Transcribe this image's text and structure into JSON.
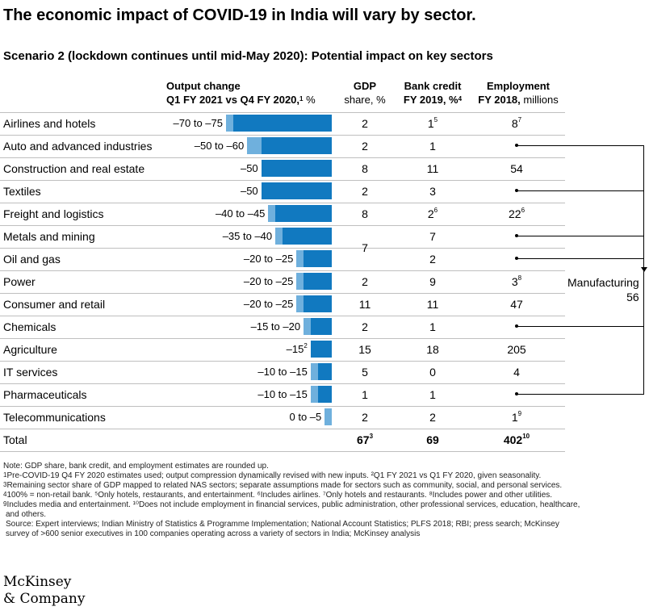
{
  "title": "The economic impact of COVID-19 in India will vary by sector.",
  "subtitle": "Scenario 2 (lockdown continues until mid-May 2020): Potential impact on key sectors",
  "headers": {
    "output_line1": "Output change",
    "output_line2": "Q1 FY 2021 vs Q4 FY 2020,",
    "output_sup": "1",
    "output_unit": " %",
    "gdp_line1": "GDP",
    "gdp_line2": "share, %",
    "credit_line1": "Bank credit",
    "credit_line2": "FY 2019, %",
    "credit_sup": "4",
    "emp_line1": "Employment",
    "emp_line2": "FY 2018,",
    "emp_unit": " millions"
  },
  "colors": {
    "bar_min": "#1179c0",
    "bar_range": "#6fb0dd"
  },
  "chart_data": {
    "type": "table",
    "rows": [
      {
        "sector": "Airlines and hotels",
        "output_label": "–70 to –75",
        "output_min": -70,
        "output_max": -75,
        "gdp": "2",
        "gdp_sup": "",
        "credit": "1",
        "credit_sup": "5",
        "employment": "8",
        "employment_sup": "7",
        "mfg": false
      },
      {
        "sector": "Auto and advanced industries",
        "output_label": "–50 to –60",
        "output_min": -50,
        "output_max": -60,
        "gdp": "2",
        "gdp_sup": "",
        "credit": "1",
        "credit_sup": "",
        "employment": "",
        "employment_sup": "",
        "mfg": true
      },
      {
        "sector": "Construction and real estate",
        "output_label": "–50",
        "output_min": -50,
        "output_max": -50,
        "gdp": "8",
        "gdp_sup": "",
        "credit": "11",
        "credit_sup": "",
        "employment": "54",
        "employment_sup": "",
        "mfg": false
      },
      {
        "sector": "Textiles",
        "output_label": "–50",
        "output_min": -50,
        "output_max": -50,
        "gdp": "2",
        "gdp_sup": "",
        "credit": "3",
        "credit_sup": "",
        "employment": "",
        "employment_sup": "",
        "mfg": true
      },
      {
        "sector": "Freight and logistics",
        "output_label": "–40 to –45",
        "output_min": -40,
        "output_max": -45,
        "gdp": "8",
        "gdp_sup": "",
        "credit": "2",
        "credit_sup": "6",
        "employment": "22",
        "employment_sup": "6",
        "mfg": false
      },
      {
        "sector": "Metals and mining",
        "output_label": "–35 to –40",
        "output_min": -35,
        "output_max": -40,
        "gdp": "",
        "gdp_sup": "",
        "credit": "7",
        "credit_sup": "",
        "employment": "",
        "employment_sup": "",
        "mfg": true
      },
      {
        "sector": "Oil and gas",
        "output_label": "–20 to –25",
        "output_min": -20,
        "output_max": -25,
        "gdp": "",
        "gdp_sup": "",
        "credit": "2",
        "credit_sup": "",
        "employment": "",
        "employment_sup": "",
        "mfg": true
      },
      {
        "sector": "Power",
        "output_label": "–20 to –25",
        "output_min": -20,
        "output_max": -25,
        "gdp": "2",
        "gdp_sup": "",
        "credit": "9",
        "credit_sup": "",
        "employment": "3",
        "employment_sup": "8",
        "mfg": false
      },
      {
        "sector": "Consumer and retail",
        "output_label": "–20 to –25",
        "output_min": -20,
        "output_max": -25,
        "gdp": "11",
        "gdp_sup": "",
        "credit": "11",
        "credit_sup": "",
        "employment": "47",
        "employment_sup": "",
        "mfg": false
      },
      {
        "sector": "Chemicals",
        "output_label": "–15 to –20",
        "output_min": -15,
        "output_max": -20,
        "gdp": "2",
        "gdp_sup": "",
        "credit": "1",
        "credit_sup": "",
        "employment": "",
        "employment_sup": "",
        "mfg": true
      },
      {
        "sector": "Agriculture",
        "output_label": "–15",
        "output_sup": "2",
        "output_min": -15,
        "output_max": -15,
        "gdp": "15",
        "gdp_sup": "",
        "credit": "18",
        "credit_sup": "",
        "employment": "205",
        "employment_sup": "",
        "mfg": false
      },
      {
        "sector": "IT services",
        "output_label": "–10 to –15",
        "output_min": -10,
        "output_max": -15,
        "gdp": "5",
        "gdp_sup": "",
        "credit": "0",
        "credit_sup": "",
        "employment": "4",
        "employment_sup": "",
        "mfg": false
      },
      {
        "sector": "Pharmaceuticals",
        "output_label": "–10 to –15",
        "output_min": -10,
        "output_max": -15,
        "gdp": "1",
        "gdp_sup": "",
        "credit": "1",
        "credit_sup": "",
        "employment": "",
        "employment_sup": "",
        "mfg": true
      },
      {
        "sector": "Telecommunications",
        "output_label": "0 to –5",
        "output_min": 0,
        "output_max": -5,
        "gdp": "2",
        "gdp_sup": "",
        "credit": "2",
        "credit_sup": "",
        "employment": "1",
        "employment_sup": "9",
        "mfg": false
      }
    ],
    "merged_gdp": {
      "value": "7",
      "rows": [
        "Metals and mining",
        "Oil and gas"
      ]
    },
    "manufacturing": {
      "label": "Manufacturing",
      "value": "56"
    },
    "total": {
      "label": "Total",
      "gdp": "67",
      "gdp_sup": "3",
      "credit": "69",
      "employment": "402",
      "employment_sup": "10"
    }
  },
  "notes": [
    {
      "sup": "",
      "text": "Note: GDP share, bank credit, and employment estimates are rounded up."
    },
    {
      "sup": "1",
      "text": "Pre-COVID-19 Q4 FY 2020 estimates used; output compression dynamically revised with new inputs. ²Q1 FY 2021 vs Q1 FY 2020, given seasonality."
    },
    {
      "sup": "3",
      "text": "Remaining sector share of GDP mapped to related NAS sectors; separate assumptions made for sectors such as community, social, and personal services."
    },
    {
      "sup": "4",
      "text": "100% = non-retail bank. ⁵Only hotels, restaurants, and entertainment. ⁶Includes airlines. ⁷Only hotels and restaurants. ⁸Includes power and other utilities."
    },
    {
      "sup": "9",
      "text": "Includes media and entertainment. ¹⁰Does not include employment in financial services, public administration, other professional services, education, healthcare,"
    },
    {
      "sup": "",
      "text": " and others."
    },
    {
      "sup": "",
      "text": "Source: Expert interviews; Indian Ministry of Statistics & Programme Implementation; National Account Statistics; PLFS 2018; RBI; press search; McKinsey"
    },
    {
      "sup": "",
      "text": "survey of >600 senior executives in 100 companies operating across a variety of sectors in India; McKinsey analysis"
    }
  ],
  "logo": {
    "line1": "McKinsey",
    "line2": "& Company"
  }
}
